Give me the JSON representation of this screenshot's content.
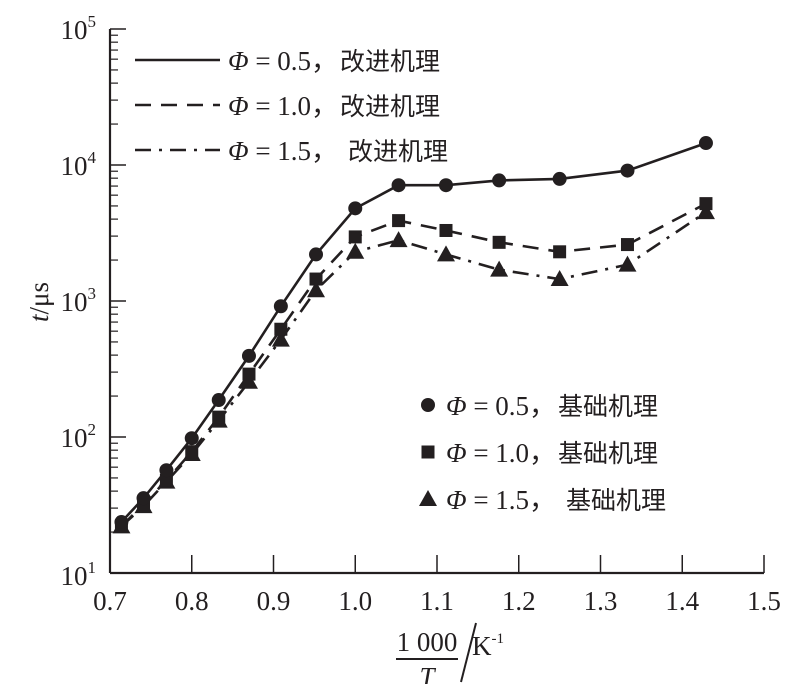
{
  "chart_data": {
    "type": "line",
    "title": "",
    "xlabel": {
      "numerator": "1 000",
      "denominator": "T",
      "unit": "K",
      "unit_exp": "-1"
    },
    "ylabel": {
      "var": "t",
      "unit": "μs"
    },
    "xlim": [
      0.7,
      1.5
    ],
    "ylim": [
      10,
      100000
    ],
    "yscale": "log",
    "xticks": [
      "0.7",
      "0.8",
      "0.9",
      "1.0",
      "1.1",
      "1.2",
      "1.3",
      "1.4",
      "1.5"
    ],
    "xtick_values": [
      0.7,
      0.8,
      0.9,
      1.0,
      1.1,
      1.2,
      1.3,
      1.4,
      1.5
    ],
    "yticks": [
      {
        "base": "10",
        "exp": "1",
        "value": 10
      },
      {
        "base": "10",
        "exp": "2",
        "value": 100
      },
      {
        "base": "10",
        "exp": "3",
        "value": 1000
      },
      {
        "base": "10",
        "exp": "4",
        "value": 10000
      },
      {
        "base": "10",
        "exp": "5",
        "value": 100000
      }
    ],
    "grid": false,
    "x": [
      0.714,
      0.741,
      0.769,
      0.8,
      0.833,
      0.87,
      0.909,
      0.952,
      1.0,
      1.053,
      1.111,
      1.176,
      1.25,
      1.333,
      1.429
    ],
    "series": [
      {
        "name": "Φ = 0.5，改进机理",
        "style": "solid",
        "marker": "circle",
        "values": [
          23.7,
          35.5,
          57,
          98,
          187,
          395,
          915,
          2200,
          4800,
          7100,
          7100,
          7700,
          7900,
          9100,
          14500
        ]
      },
      {
        "name": "Φ = 1.0，改进机理",
        "style": "dashed",
        "marker": "square",
        "values": [
          22,
          32,
          48,
          78,
          140,
          290,
          620,
          1450,
          2960,
          3900,
          3300,
          2700,
          2300,
          2600,
          5200
        ]
      },
      {
        "name": "Φ = 1.5，改进机理",
        "style": "dashdot",
        "marker": "triangle",
        "values": [
          22,
          31,
          47,
          75,
          132,
          255,
          520,
          1200,
          2300,
          2800,
          2200,
          1700,
          1450,
          1850,
          4500
        ]
      }
    ],
    "legend_lines": {
      "placement": "top-left",
      "entries": [
        {
          "phi": "Φ",
          "eq": " = 0.5，",
          "label": "改进机理",
          "style": "solid"
        },
        {
          "phi": "Φ",
          "eq": " = 1.0，",
          "label": "改进机理",
          "style": "dashed"
        },
        {
          "phi": "Φ",
          "eq": " = 1.5，",
          "label": "改进机理",
          "style": "dashdot"
        }
      ]
    },
    "legend_markers": {
      "placement": "bottom-right",
      "entries": [
        {
          "phi": "Φ",
          "eq": " = 0.5，",
          "label": "基础机理",
          "marker": "circle"
        },
        {
          "phi": "Φ",
          "eq": " = 1.0，",
          "label": "基础机理",
          "marker": "square"
        },
        {
          "phi": "Φ",
          "eq": " = 1.5，",
          "label": "基础机理",
          "marker": "triangle"
        }
      ]
    },
    "colors": {
      "ink": "#231f20",
      "background": "#ffffff"
    }
  }
}
